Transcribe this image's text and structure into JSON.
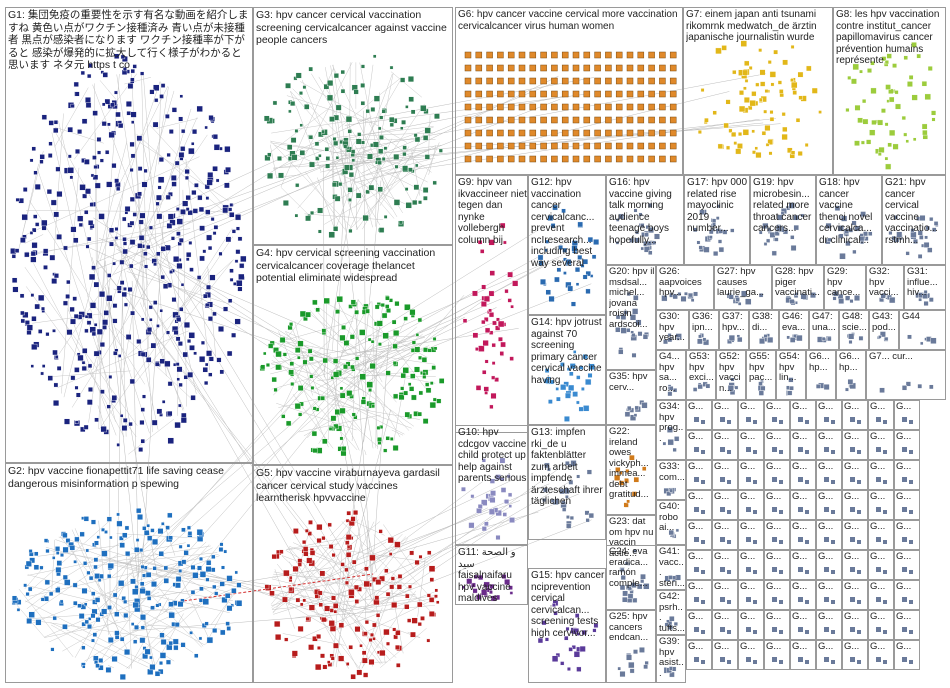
{
  "palette": {
    "G1": "#1a237e",
    "G2": "#1e6fbf",
    "G3": "#2e7d52",
    "G4": "#1a9a2a",
    "G5": "#b71c1c",
    "G6": "#e0892a",
    "G7": "#e2b719",
    "G8": "#9ccc3c",
    "G9": "#c2185b",
    "G10": "#8a8ac0",
    "G11": "#6a2a8a",
    "G12": "#2a6ab0",
    "G14": "#3a8ad0",
    "G15": "#5a3a9a",
    "G22": "#d07a1a",
    "other": "#6a7a9a"
  },
  "groups": [
    {
      "id": "G1",
      "label": "G1: 集団免疫の重要性を示す有名な動画を紹介しますね 黄色い点がワクチン接種済み 青い点が未接種者 黒点が感染者になります ワクチン接種率が下がると 感染が爆発的に拡大して行く様子がわかると思います ネタ元 https t co"
    },
    {
      "id": "G3",
      "label": "G3: hpv cancer cervical vaccination screening cervicalcancer against vaccine people cancers"
    },
    {
      "id": "G6",
      "label": "G6: hpv cancer vaccine cervical more vaccination cervicalcancer virus human women"
    },
    {
      "id": "G7",
      "label": "G7: einem japan anti tsunami rikomrnk medwatch_de ärztin japanische journalistin wurde"
    },
    {
      "id": "G8",
      "label": "G8: les hpv vaccination contre institut_cancer papillomavirus cancer prévention humains représente"
    },
    {
      "id": "G9",
      "label": "G9: hpv van ikvaccineer niet tegen dan nynke vollebergh column bij"
    },
    {
      "id": "G12",
      "label": "G12: hpv vaccination cancer cervicalcanc... prevent ncIresearch... including best way several"
    },
    {
      "id": "G16",
      "label": "G16: hpv vaccine giving talk morning audience teenage boys hopefully..."
    },
    {
      "id": "G17",
      "label": "G17: hpv 000 related rise mayoclinic 2019 number..."
    },
    {
      "id": "G19",
      "label": "G19: hpv microbesin... related more throat cancer cancers..."
    },
    {
      "id": "G18",
      "label": "G18: hpv cancer vaccine thenci novel cervicalca... dr clinical..."
    },
    {
      "id": "G21",
      "label": "G21: hpv cancer cervical vaccine vaccinatio... rstmh..."
    },
    {
      "id": "G4",
      "label": "G4: hpv cervical screening vaccination cervicalcancer coverage thelancet potential eliminate widespread"
    },
    {
      "id": "G20",
      "label": "G20: hpv il msdsal... michel... jovana roisin ardscoi..."
    },
    {
      "id": "G26",
      "label": "G26: aapvoices hpv..."
    },
    {
      "id": "G27",
      "label": "G27: hpv causes laurie_ga..."
    },
    {
      "id": "G28",
      "label": "G28: hpv piger vaccinati..."
    },
    {
      "id": "G29",
      "label": "G29: hpv cance..."
    },
    {
      "id": "G32",
      "label": "G32: hpv vacci..."
    },
    {
      "id": "G31",
      "label": "G31: influe... hiv..."
    },
    {
      "id": "G30",
      "label": "G30: hpv year..."
    },
    {
      "id": "G36",
      "label": "G36: ipn..."
    },
    {
      "id": "G37",
      "label": "G37: hpv..."
    },
    {
      "id": "G38",
      "label": "G38: di..."
    },
    {
      "id": "G46",
      "label": "G46: eva..."
    },
    {
      "id": "G47",
      "label": "G47: una..."
    },
    {
      "id": "G48",
      "label": "G48: scie..."
    },
    {
      "id": "G43",
      "label": "G43: pod..."
    },
    {
      "id": "G44",
      "label": "G44"
    },
    {
      "id": "G14",
      "label": "G14: hpv jotrust against 70 screening primary cancer cervical vaccine having"
    },
    {
      "id": "G35",
      "label": "G35: hpv cerv..."
    },
    {
      "id": "G4x",
      "label": "G4... hpv sa... ro..."
    },
    {
      "id": "G53",
      "label": "G53: hpv exci..."
    },
    {
      "id": "G52",
      "label": "G52: hpv vaccin..."
    },
    {
      "id": "G55",
      "label": "G55: hpv pac..."
    },
    {
      "id": "G54",
      "label": "G54: hpv lin..."
    },
    {
      "id": "G6x",
      "label": "G6... hp..."
    },
    {
      "id": "G6y",
      "label": "G6... hp..."
    },
    {
      "id": "G7x",
      "label": "G7... cur..."
    },
    {
      "id": "G2",
      "label": "G2: hpv vaccine fionapettit71 life saving cease dangerous misinformation p spewing"
    },
    {
      "id": "G5",
      "label": "G5: hpv vaccine viraburnayeva gardasil cancer cervical study vaccines learntherisk hpvvaccine"
    },
    {
      "id": "G10",
      "label": "G10: hpv cdcgov vaccine child protect up help against parents serious"
    },
    {
      "id": "G22",
      "label": "G22: ireland owes vickyph... immea... debt gratitud..."
    },
    {
      "id": "G34",
      "label": "G34: hpv prog..."
    },
    {
      "id": "G13",
      "label": "G13: impfen rki_de u faktenblätter zum arbeit impfende ärzteschaft ihrer täglichen"
    },
    {
      "id": "G23",
      "label": "G23: dat om hpv nu vaccin actie..."
    },
    {
      "id": "G33",
      "label": "G33: com..."
    },
    {
      "id": "G40",
      "label": "G40: robo ai..."
    },
    {
      "id": "G11",
      "label": "G11: ﻭ ﺍﻟﺼﺤﺔ ﺳﻴﺪ faisalnaifaru hpv vaccine maldives"
    },
    {
      "id": "G24",
      "label": "G24: eva eradica... ramón comple..."
    },
    {
      "id": "G41",
      "label": "G41: vacc... steri..."
    },
    {
      "id": "G15",
      "label": "G15: hpv cancer nciprevention cervical cervicalcan... screening tests high cervivor..."
    },
    {
      "id": "G25",
      "label": "G25: hpv cancers endcan..."
    },
    {
      "id": "G42",
      "label": "G42: psrh... tufts..."
    },
    {
      "id": "G39",
      "label": "G39: hpv asist..."
    }
  ],
  "tiny_tile_label": "G..."
}
